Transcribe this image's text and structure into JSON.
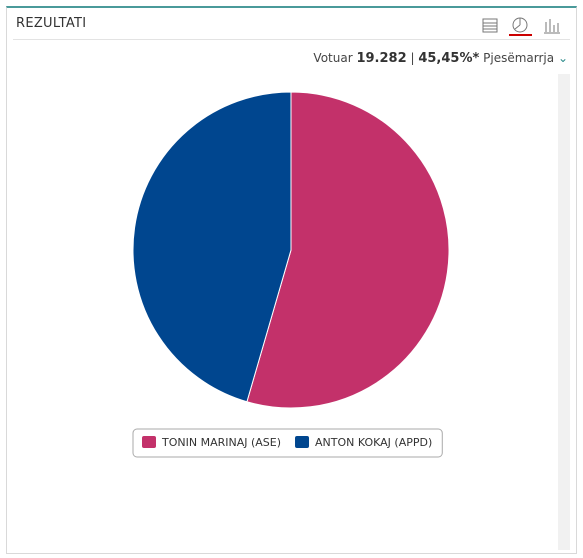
{
  "header": {
    "title": "REZULTATI",
    "voted_label": "Votuar",
    "voted": "19.282",
    "separator": "|",
    "turnout": "45,45%*",
    "turnout_label": "Pjesëmarrja"
  },
  "chart_data": {
    "type": "pie",
    "categories": [
      "TONIN MARINAJ (ASE)",
      "ANTON KOKAJ (APPD)"
    ],
    "values": [
      54.5,
      45.5
    ],
    "colors": [
      "#c3316a",
      "#00468f"
    ]
  }
}
